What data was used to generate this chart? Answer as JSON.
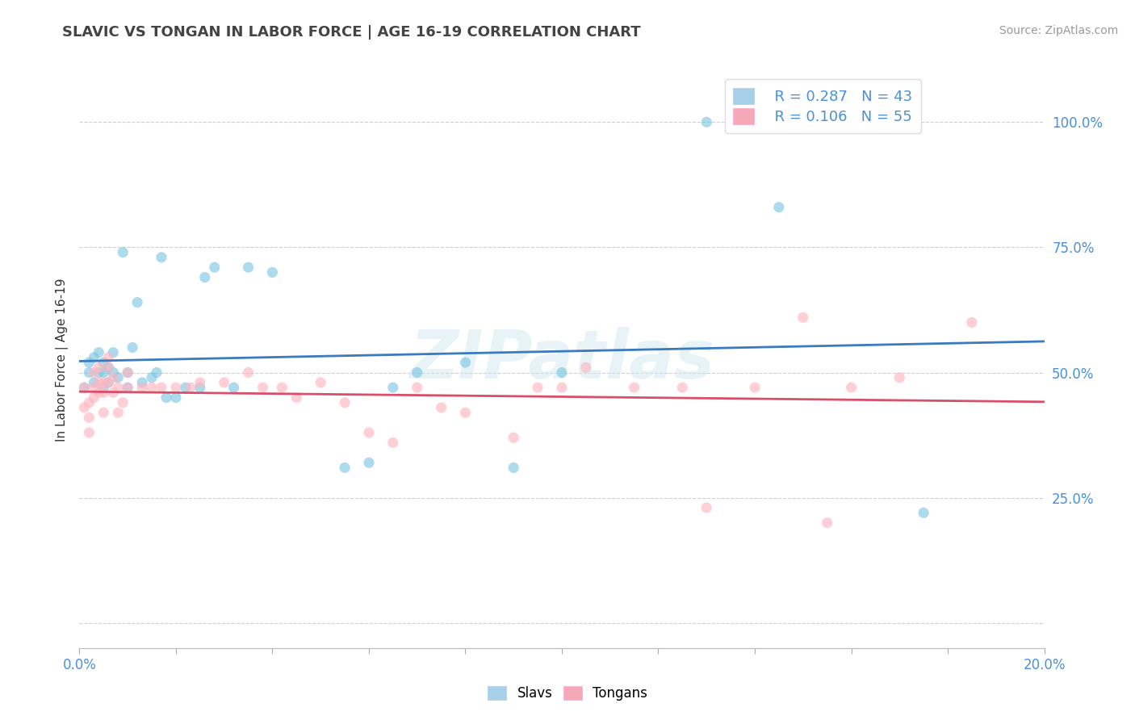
{
  "title": "SLAVIC VS TONGAN IN LABOR FORCE | AGE 16-19 CORRELATION CHART",
  "source": "Source: ZipAtlas.com",
  "ylabel": "In Labor Force | Age 16-19",
  "xlim": [
    0.0,
    0.2
  ],
  "ylim": [
    -0.05,
    1.1
  ],
  "yticks": [
    0.0,
    0.25,
    0.5,
    0.75,
    1.0
  ],
  "ytick_labels": [
    "",
    "25.0%",
    "50.0%",
    "75.0%",
    "100.0%"
  ],
  "watermark": "ZIPatlas",
  "legend_slavs_R": "R = 0.287",
  "legend_slavs_N": "N = 43",
  "legend_tongans_R": "R = 0.106",
  "legend_tongans_N": "N = 55",
  "slav_color": "#7ec8e3",
  "tongan_color": "#ffb6c1",
  "slav_line_color": "#3a7abf",
  "tongan_line_color": "#d94f6a",
  "slav_legend_color": "#a8cfe8",
  "tongan_legend_color": "#f5a8b8",
  "slavs_x": [
    0.001,
    0.002,
    0.002,
    0.003,
    0.003,
    0.004,
    0.004,
    0.005,
    0.005,
    0.005,
    0.006,
    0.006,
    0.007,
    0.007,
    0.008,
    0.009,
    0.01,
    0.01,
    0.011,
    0.012,
    0.013,
    0.015,
    0.016,
    0.017,
    0.018,
    0.02,
    0.022,
    0.025,
    0.026,
    0.028,
    0.032,
    0.035,
    0.04,
    0.055,
    0.06,
    0.065,
    0.07,
    0.08,
    0.09,
    0.1,
    0.13,
    0.145,
    0.175
  ],
  "slavs_y": [
    0.47,
    0.5,
    0.52,
    0.48,
    0.53,
    0.5,
    0.54,
    0.47,
    0.5,
    0.52,
    0.48,
    0.51,
    0.5,
    0.54,
    0.49,
    0.74,
    0.47,
    0.5,
    0.55,
    0.64,
    0.48,
    0.49,
    0.5,
    0.73,
    0.45,
    0.45,
    0.47,
    0.47,
    0.69,
    0.71,
    0.47,
    0.71,
    0.7,
    0.31,
    0.32,
    0.47,
    0.5,
    0.52,
    0.31,
    0.5,
    1.0,
    0.83,
    0.22
  ],
  "tongans_x": [
    0.001,
    0.001,
    0.002,
    0.002,
    0.002,
    0.003,
    0.003,
    0.003,
    0.004,
    0.004,
    0.004,
    0.005,
    0.005,
    0.005,
    0.006,
    0.006,
    0.006,
    0.007,
    0.007,
    0.008,
    0.008,
    0.009,
    0.01,
    0.01,
    0.013,
    0.015,
    0.017,
    0.02,
    0.023,
    0.025,
    0.03,
    0.035,
    0.038,
    0.042,
    0.045,
    0.05,
    0.055,
    0.06,
    0.065,
    0.07,
    0.075,
    0.08,
    0.09,
    0.095,
    0.1,
    0.105,
    0.115,
    0.125,
    0.13,
    0.14,
    0.15,
    0.155,
    0.16,
    0.17,
    0.185
  ],
  "tongans_y": [
    0.43,
    0.47,
    0.38,
    0.41,
    0.44,
    0.45,
    0.47,
    0.5,
    0.46,
    0.48,
    0.51,
    0.42,
    0.46,
    0.48,
    0.48,
    0.51,
    0.53,
    0.46,
    0.49,
    0.42,
    0.47,
    0.44,
    0.47,
    0.5,
    0.47,
    0.47,
    0.47,
    0.47,
    0.47,
    0.48,
    0.48,
    0.5,
    0.47,
    0.47,
    0.45,
    0.48,
    0.44,
    0.38,
    0.36,
    0.47,
    0.43,
    0.42,
    0.37,
    0.47,
    0.47,
    0.51,
    0.47,
    0.47,
    0.23,
    0.47,
    0.61,
    0.2,
    0.47,
    0.49,
    0.6
  ]
}
